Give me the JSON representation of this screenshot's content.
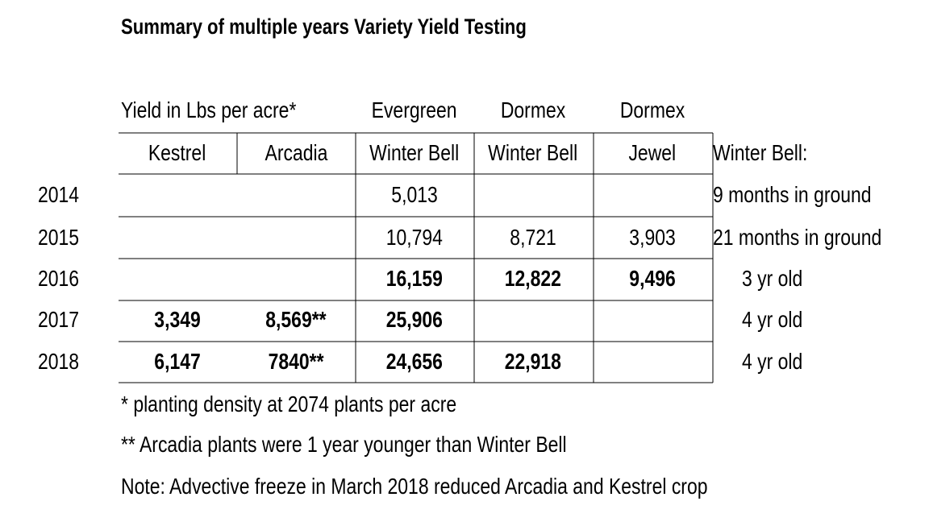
{
  "chart_data": {
    "type": "table",
    "title": "Summary of multiple years Variety Yield Testing",
    "caption": "Yield in Lbs per acre*",
    "columns": [
      {
        "top": "",
        "name": "Kestrel"
      },
      {
        "top": "",
        "name": "Arcadia"
      },
      {
        "top": "Evergreen",
        "name": "Winter Bell"
      },
      {
        "top": "Dormex",
        "name": "Winter Bell"
      },
      {
        "top": "Dormex",
        "name": "Jewel"
      }
    ],
    "side_header": "Winter Bell:",
    "rows": [
      {
        "year": "2014",
        "cells": [
          "",
          "",
          "5,013",
          "",
          ""
        ],
        "bold": false,
        "note": "9 months in ground"
      },
      {
        "year": "2015",
        "cells": [
          "",
          "",
          "10,794",
          "8,721",
          "3,903"
        ],
        "bold": false,
        "note": "21 months in ground"
      },
      {
        "year": "2016",
        "cells": [
          "",
          "",
          "16,159",
          "12,822",
          "9,496"
        ],
        "bold": true,
        "note": "3 yr old"
      },
      {
        "year": "2017",
        "cells": [
          "3,349",
          "8,569**",
          "25,906",
          "",
          ""
        ],
        "bold": true,
        "note": "4 yr old"
      },
      {
        "year": "2018",
        "cells": [
          "6,147",
          "7840**",
          "24,656",
          "22,918",
          ""
        ],
        "bold": true,
        "note": "4 yr old"
      }
    ],
    "footnotes": [
      "* planting density at 2074 plants per acre",
      "** Arcadia plants were 1 year younger than Winter Bell",
      "Note: Advective freeze in March 2018 reduced Arcadia and Kestrel crop"
    ]
  }
}
